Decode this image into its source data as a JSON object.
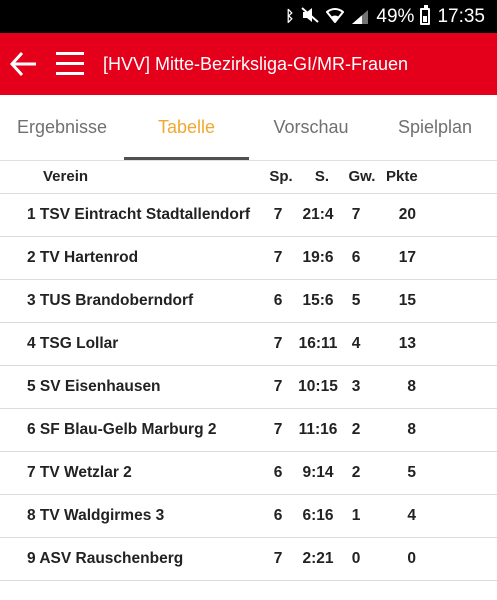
{
  "status_bar": {
    "battery_percent": "49%",
    "time": "17:35",
    "icons": [
      "bluetooth-icon",
      "mute-icon",
      "wifi-icon",
      "signal-icon",
      "battery-icon"
    ]
  },
  "app_bar": {
    "title": "[HVV] Mitte-Bezirksliga-GI/MR-Frauen",
    "background": "#e4001b"
  },
  "tabs": [
    {
      "label": "Ergebnisse",
      "active": false
    },
    {
      "label": "Tabelle",
      "active": true
    },
    {
      "label": "Vorschau",
      "active": false
    },
    {
      "label": "Spielplan",
      "active": false
    }
  ],
  "accent_color": "#f0a830",
  "table": {
    "headers": {
      "team": "Verein",
      "sp": "Sp.",
      "s": "S.",
      "gw": "Gw.",
      "pkte": "Pkte"
    },
    "rows": [
      {
        "team": "1 TSV Eintracht Stadtallendorf",
        "sp": "7",
        "s": "21:4",
        "gw": "7",
        "pkte": "20"
      },
      {
        "team": "2 TV Hartenrod",
        "sp": "7",
        "s": "19:6",
        "gw": "6",
        "pkte": "17"
      },
      {
        "team": "3 TUS Brandoberndorf",
        "sp": "6",
        "s": "15:6",
        "gw": "5",
        "pkte": "15"
      },
      {
        "team": "4 TSG Lollar",
        "sp": "7",
        "s": "16:11",
        "gw": "4",
        "pkte": "13"
      },
      {
        "team": "5 SV Eisenhausen",
        "sp": "7",
        "s": "10:15",
        "gw": "3",
        "pkte": "8"
      },
      {
        "team": "6 SF Blau-Gelb Marburg 2",
        "sp": "7",
        "s": "11:16",
        "gw": "2",
        "pkte": "8"
      },
      {
        "team": "7 TV Wetzlar 2",
        "sp": "6",
        "s": "9:14",
        "gw": "2",
        "pkte": "5"
      },
      {
        "team": "8 TV Waldgirmes 3",
        "sp": "6",
        "s": "6:16",
        "gw": "1",
        "pkte": "4"
      },
      {
        "team": "9 ASV Rauschenberg",
        "sp": "7",
        "s": "2:21",
        "gw": "0",
        "pkte": "0"
      }
    ]
  }
}
